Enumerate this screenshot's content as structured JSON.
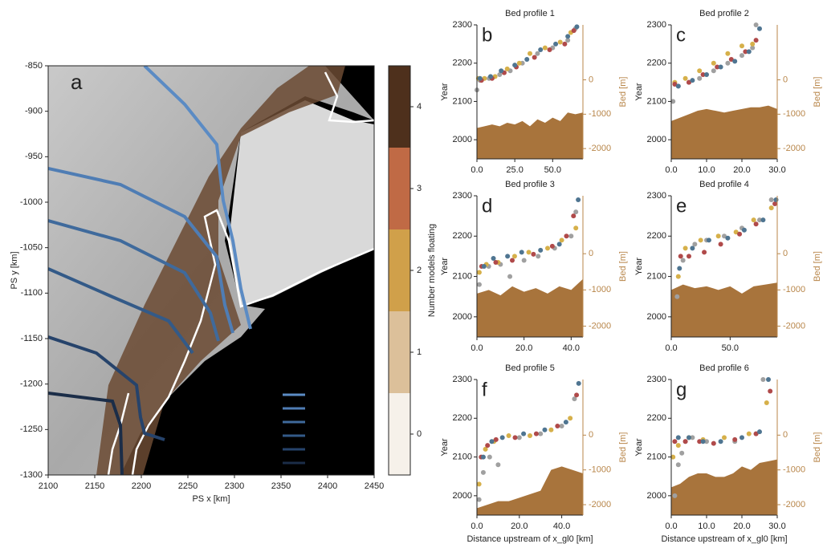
{
  "chart_data": [
    {
      "type": "map",
      "panel_label": "a",
      "xlabel": "PS x [km]",
      "ylabel": "PS y [km]",
      "xlim": [
        2100,
        2450
      ],
      "xticks": [
        2100,
        2150,
        2200,
        2250,
        2300,
        2350,
        2400,
        2450
      ],
      "ylim": [
        -1300,
        -850
      ],
      "yticks": [
        -1300,
        -1250,
        -1200,
        -1150,
        -1100,
        -1050,
        -1000,
        -950,
        -900,
        -850
      ],
      "colorbar": {
        "label": "Number models floating",
        "clim": [
          -0.5,
          4.5
        ],
        "ticks": [
          0,
          1,
          2,
          3,
          4
        ],
        "colors": [
          "#f6f1ea",
          "#dcc09a",
          "#d0a04a",
          "#c06a45",
          "#4e301c"
        ]
      }
    },
    {
      "type": "scatter",
      "title": "Bed profile 1",
      "panel_label": "b",
      "ylabel": "Year",
      "y2label": "Bed [m]",
      "y2color": "#b8864a",
      "xlim": [
        0,
        70
      ],
      "xticks": [
        {
          "value": 0,
          "label": "0.0"
        },
        {
          "value": 25,
          "label": "25.0"
        },
        {
          "value": 50,
          "label": "50.0"
        }
      ],
      "ylim": [
        1950,
        2300
      ],
      "yticks": [
        2000,
        2100,
        2200,
        2300
      ],
      "y2lim": [
        -2300,
        1600
      ],
      "y2ticks": [
        -2000,
        -1000,
        0
      ],
      "series": [
        {
          "axis": "y2",
          "color": "#a8743c",
          "x": [
            0,
            5,
            10,
            15,
            20,
            25,
            30,
            35,
            40,
            45,
            50,
            55,
            60,
            65,
            70
          ],
          "values": [
            -1400,
            -1350,
            -1300,
            -1350,
            -1250,
            -1300,
            -1200,
            -1350,
            -1150,
            -1250,
            -1100,
            -1200,
            -950,
            -1000,
            -950
          ]
        },
        {
          "color": "#a0a0a0",
          "x": [
            0,
            2,
            8,
            15,
            22,
            30,
            40,
            50,
            60,
            65
          ],
          "values": [
            2130,
            2155,
            2160,
            2170,
            2180,
            2200,
            2225,
            2240,
            2260,
            2290
          ]
        },
        {
          "color": "#d6b04a",
          "x": [
            1,
            5,
            12,
            20,
            28,
            35,
            45,
            55,
            62
          ],
          "values": [
            2160,
            2160,
            2165,
            2185,
            2200,
            2225,
            2240,
            2255,
            2280
          ]
        },
        {
          "color": "#b04a4a",
          "x": [
            3,
            10,
            18,
            26,
            38,
            48,
            58,
            64
          ],
          "values": [
            2155,
            2160,
            2175,
            2190,
            2215,
            2235,
            2250,
            2285
          ]
        },
        {
          "color": "#4f7591",
          "x": [
            2,
            9,
            16,
            25,
            33,
            42,
            52,
            60,
            66
          ],
          "values": [
            2160,
            2165,
            2180,
            2195,
            2210,
            2235,
            2250,
            2270,
            2295
          ]
        }
      ]
    },
    {
      "type": "scatter",
      "title": "Bed profile 2",
      "panel_label": "c",
      "ylabel": "Year",
      "y2label": "Bed [m]",
      "y2color": "#b8864a",
      "xlim": [
        0,
        30
      ],
      "xticks": [
        {
          "value": 0,
          "label": "0.0"
        },
        {
          "value": 10,
          "label": "10.0"
        },
        {
          "value": 20,
          "label": "20.0"
        },
        {
          "value": 30,
          "label": "30.0"
        }
      ],
      "ylim": [
        1950,
        2300
      ],
      "yticks": [
        2000,
        2100,
        2200,
        2300
      ],
      "y2lim": [
        -2300,
        1600
      ],
      "y2ticks": [
        -2000,
        -1000,
        0
      ],
      "series": [
        {
          "axis": "y2",
          "color": "#a8743c",
          "x": [
            0,
            2.5,
            5,
            7.5,
            10,
            12.5,
            15,
            17.5,
            20,
            22.5,
            25,
            27.5,
            30
          ],
          "values": [
            -1200,
            -1100,
            -1000,
            -900,
            -850,
            -900,
            -950,
            -900,
            -850,
            -800,
            -800,
            -750,
            -850
          ]
        },
        {
          "color": "#a0a0a0",
          "x": [
            0.5,
            2,
            5,
            8,
            12,
            16,
            20,
            23,
            24
          ],
          "values": [
            2100,
            2140,
            2150,
            2160,
            2180,
            2200,
            2220,
            2240,
            2300
          ]
        },
        {
          "color": "#d6b04a",
          "x": [
            1,
            4,
            8,
            12,
            16,
            20,
            23
          ],
          "values": [
            2150,
            2160,
            2180,
            2200,
            2225,
            2245,
            2250
          ]
        },
        {
          "color": "#b04a4a",
          "x": [
            1,
            5,
            9,
            13,
            17,
            21,
            24
          ],
          "values": [
            2145,
            2150,
            2170,
            2190,
            2210,
            2230,
            2260
          ]
        },
        {
          "color": "#4f7591",
          "x": [
            2,
            6,
            10,
            14,
            18,
            22,
            25
          ],
          "values": [
            2140,
            2155,
            2170,
            2190,
            2205,
            2230,
            2290
          ]
        }
      ]
    },
    {
      "type": "scatter",
      "title": "Bed profile 3",
      "panel_label": "d",
      "ylabel": "Year",
      "y2label": "Bed [m]",
      "y2color": "#b8864a",
      "xlim": [
        0,
        45
      ],
      "xticks": [
        {
          "value": 0,
          "label": "0.0"
        },
        {
          "value": 20,
          "label": "20.0"
        },
        {
          "value": 40,
          "label": "40.0"
        }
      ],
      "ylim": [
        1950,
        2300
      ],
      "yticks": [
        2000,
        2100,
        2200,
        2300
      ],
      "y2lim": [
        -2300,
        1600
      ],
      "y2ticks": [
        -2000,
        -1000,
        0
      ],
      "series": [
        {
          "axis": "y2",
          "color": "#a8743c",
          "x": [
            0,
            5,
            10,
            15,
            20,
            25,
            30,
            35,
            40,
            45
          ],
          "values": [
            -1100,
            -1000,
            -1150,
            -900,
            -1050,
            -950,
            -1100,
            -900,
            -1000,
            -700
          ]
        },
        {
          "color": "#a0a0a0",
          "x": [
            1,
            5,
            10,
            14,
            20,
            26,
            33,
            40,
            42
          ],
          "values": [
            2080,
            2125,
            2130,
            2100,
            2140,
            2150,
            2170,
            2200,
            2260
          ]
        },
        {
          "color": "#d6b04a",
          "x": [
            1,
            4,
            9,
            16,
            22,
            30,
            36,
            42
          ],
          "values": [
            2110,
            2130,
            2135,
            2150,
            2160,
            2170,
            2190,
            2220
          ]
        },
        {
          "color": "#b04a4a",
          "x": [
            2,
            8,
            15,
            24,
            32,
            38,
            41
          ],
          "values": [
            2125,
            2135,
            2140,
            2155,
            2175,
            2200,
            2250
          ]
        },
        {
          "color": "#4f7591",
          "x": [
            3,
            7,
            13,
            19,
            27,
            35,
            43
          ],
          "values": [
            2125,
            2145,
            2150,
            2160,
            2165,
            2180,
            2290
          ]
        }
      ]
    },
    {
      "type": "scatter",
      "title": "Bed profile 4",
      "panel_label": "e",
      "ylabel": "Year",
      "y2label": "Bed [m]",
      "y2color": "#b8864a",
      "xlim": [
        0,
        90
      ],
      "xticks": [
        {
          "value": 0,
          "label": "0.0"
        },
        {
          "value": 50,
          "label": "50.0"
        }
      ],
      "ylim": [
        1950,
        2300
      ],
      "yticks": [
        2000,
        2100,
        2200,
        2300
      ],
      "y2lim": [
        -2300,
        1600
      ],
      "y2ticks": [
        -2000,
        -1000,
        0
      ],
      "series": [
        {
          "axis": "y2",
          "color": "#a8743c",
          "x": [
            0,
            10,
            20,
            30,
            40,
            50,
            60,
            70,
            80,
            90
          ],
          "values": [
            -1000,
            -850,
            -950,
            -900,
            -1000,
            -900,
            -1100,
            -900,
            -850,
            -800
          ]
        },
        {
          "color": "#a0a0a0",
          "x": [
            5,
            10,
            20,
            30,
            45,
            60,
            75,
            85
          ],
          "values": [
            2050,
            2140,
            2180,
            2190,
            2200,
            2220,
            2240,
            2290
          ]
        },
        {
          "color": "#d6b04a",
          "x": [
            6,
            12,
            25,
            40,
            55,
            70,
            85
          ],
          "values": [
            2100,
            2170,
            2190,
            2200,
            2210,
            2240,
            2270
          ]
        },
        {
          "color": "#b04a4a",
          "x": [
            8,
            15,
            28,
            42,
            58,
            72,
            88
          ],
          "values": [
            2150,
            2150,
            2160,
            2180,
            2205,
            2230,
            2280
          ]
        },
        {
          "color": "#4f7591",
          "x": [
            7,
            18,
            32,
            48,
            62,
            78,
            89
          ],
          "values": [
            2120,
            2170,
            2190,
            2195,
            2215,
            2240,
            2290
          ]
        }
      ]
    },
    {
      "type": "scatter",
      "title": "Bed profile 5",
      "panel_label": "f",
      "ylabel": "Year",
      "y2label": "Bed [m]",
      "y2color": "#b8864a",
      "xlabel": "Distance upstream of x_gl0 [km]",
      "xlim": [
        0,
        50
      ],
      "xticks": [
        {
          "value": 0,
          "label": "0.0"
        },
        {
          "value": 20,
          "label": "20.0"
        },
        {
          "value": 40,
          "label": "40.0"
        }
      ],
      "ylim": [
        1950,
        2300
      ],
      "yticks": [
        2000,
        2100,
        2200,
        2300
      ],
      "y2lim": [
        -2300,
        1600
      ],
      "y2ticks": [
        -2000,
        -1000,
        0
      ],
      "series": [
        {
          "axis": "y2",
          "color": "#a8743c",
          "x": [
            0,
            5,
            10,
            15,
            20,
            25,
            30,
            35,
            40,
            45,
            50
          ],
          "values": [
            -2100,
            -2000,
            -1900,
            -1900,
            -1800,
            -1700,
            -1600,
            -1000,
            -900,
            -1000,
            -1100
          ]
        },
        {
          "color": "#a0a0a0",
          "x": [
            1,
            3,
            6,
            10,
            20,
            30,
            40,
            46
          ],
          "values": [
            1990,
            2060,
            2100,
            2080,
            2150,
            2160,
            2180,
            2250
          ]
        },
        {
          "color": "#d6b04a",
          "x": [
            1,
            4,
            8,
            15,
            25,
            35,
            44
          ],
          "values": [
            2030,
            2120,
            2140,
            2155,
            2155,
            2170,
            2200
          ]
        },
        {
          "color": "#b04a4a",
          "x": [
            2,
            5,
            9,
            18,
            28,
            38,
            47
          ],
          "values": [
            2100,
            2130,
            2145,
            2150,
            2160,
            2180,
            2260
          ]
        },
        {
          "color": "#4f7591",
          "x": [
            3,
            7,
            12,
            22,
            32,
            42,
            48
          ],
          "values": [
            2100,
            2140,
            2150,
            2160,
            2170,
            2190,
            2290
          ]
        }
      ]
    },
    {
      "type": "scatter",
      "title": "Bed profile 6",
      "panel_label": "g",
      "ylabel": "Year",
      "y2label": "Bed [m]",
      "y2color": "#b8864a",
      "xlabel": "Distance upstream of x_gl0 [km]",
      "xlim": [
        0,
        30
      ],
      "xticks": [
        {
          "value": 0,
          "label": "0.0"
        },
        {
          "value": 10,
          "label": "10.0"
        },
        {
          "value": 20,
          "label": "20.0"
        },
        {
          "value": 30,
          "label": "30.0"
        }
      ],
      "ylim": [
        1950,
        2300
      ],
      "yticks": [
        2000,
        2100,
        2200,
        2300
      ],
      "y2lim": [
        -2300,
        1600
      ],
      "y2ticks": [
        -2000,
        -1000,
        0
      ],
      "series": [
        {
          "axis": "y2",
          "color": "#a8743c",
          "x": [
            0,
            2.5,
            5,
            7.5,
            10,
            12.5,
            15,
            17.5,
            20,
            22.5,
            25,
            27.5,
            30
          ],
          "values": [
            -1500,
            -1400,
            -1200,
            -1100,
            -1100,
            -1200,
            -1200,
            -1100,
            -900,
            -1000,
            -800,
            -750,
            -700
          ]
        },
        {
          "color": "#a0a0a0",
          "x": [
            1,
            2,
            3,
            4,
            6,
            10,
            18,
            24,
            26
          ],
          "values": [
            2000,
            2080,
            2110,
            2140,
            2150,
            2140,
            2140,
            2160,
            2300
          ]
        },
        {
          "color": "#d6b04a",
          "x": [
            0.5,
            2,
            5,
            9,
            15,
            22,
            27
          ],
          "values": [
            2100,
            2130,
            2150,
            2145,
            2150,
            2160,
            2240
          ]
        },
        {
          "color": "#b04a4a",
          "x": [
            1,
            4,
            8,
            12,
            18,
            24,
            28
          ],
          "values": [
            2140,
            2140,
            2140,
            2135,
            2145,
            2160,
            2270
          ]
        },
        {
          "color": "#4f7591",
          "x": [
            2,
            5,
            9,
            14,
            20,
            25,
            27.5
          ],
          "values": [
            2150,
            2150,
            2140,
            2140,
            2150,
            2165,
            2300
          ]
        }
      ]
    }
  ]
}
